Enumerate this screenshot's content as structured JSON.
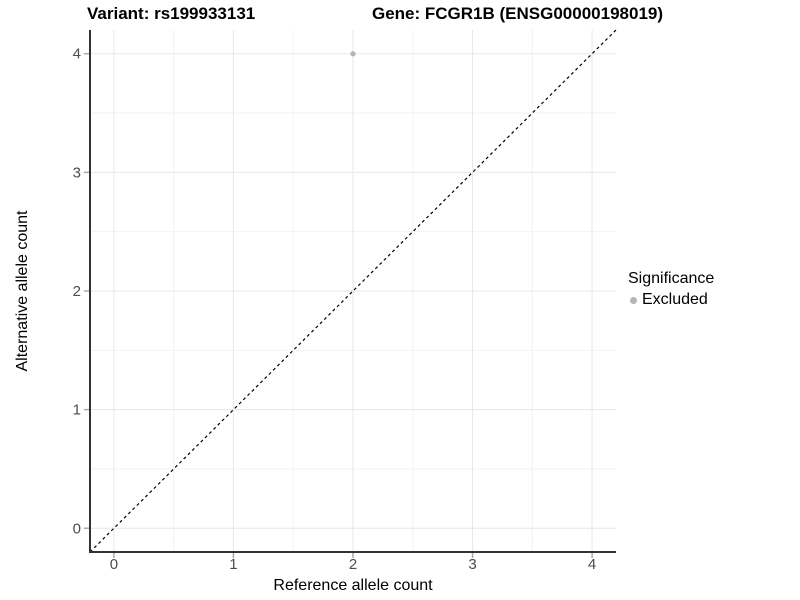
{
  "header": {
    "variant_title": "Variant: rs199933131",
    "gene_title": "Gene: FCGR1B (ENSG00000198019)"
  },
  "legend": {
    "title": "Significance",
    "items": [
      {
        "label": "Excluded",
        "color": "#b5b5b5"
      }
    ]
  },
  "chart_data": {
    "type": "scatter",
    "title_left": "Variant: rs199933131",
    "title_right": "Gene: FCGR1B (ENSG00000198019)",
    "xlabel": "Reference allele count",
    "ylabel": "Alternative allele count",
    "xlim": [
      -0.2,
      4.2
    ],
    "ylim": [
      -0.2,
      4.2
    ],
    "x_ticks": [
      0,
      1,
      2,
      3,
      4
    ],
    "y_ticks": [
      0,
      1,
      2,
      3,
      4
    ],
    "minor_grid_positions": [
      0.5,
      1.5,
      2.5,
      3.5
    ],
    "grid": "major+minor",
    "legend_position": "right",
    "series": [
      {
        "name": "Excluded",
        "color": "#b5b5b5",
        "points": [
          {
            "x": 2,
            "y": 4
          }
        ]
      }
    ],
    "reference_line": {
      "kind": "identity",
      "linestyle": "dashed",
      "color": "#000000",
      "from": [
        -0.2,
        -0.2
      ],
      "to": [
        4.2,
        4.2
      ]
    },
    "colors": {
      "grid_major": "#e7e7e7",
      "grid_minor": "#f2f2f2",
      "axis_line": "#333333",
      "tick_mark": "#a9a9a9",
      "tick_label": "#4d4d4d"
    }
  }
}
